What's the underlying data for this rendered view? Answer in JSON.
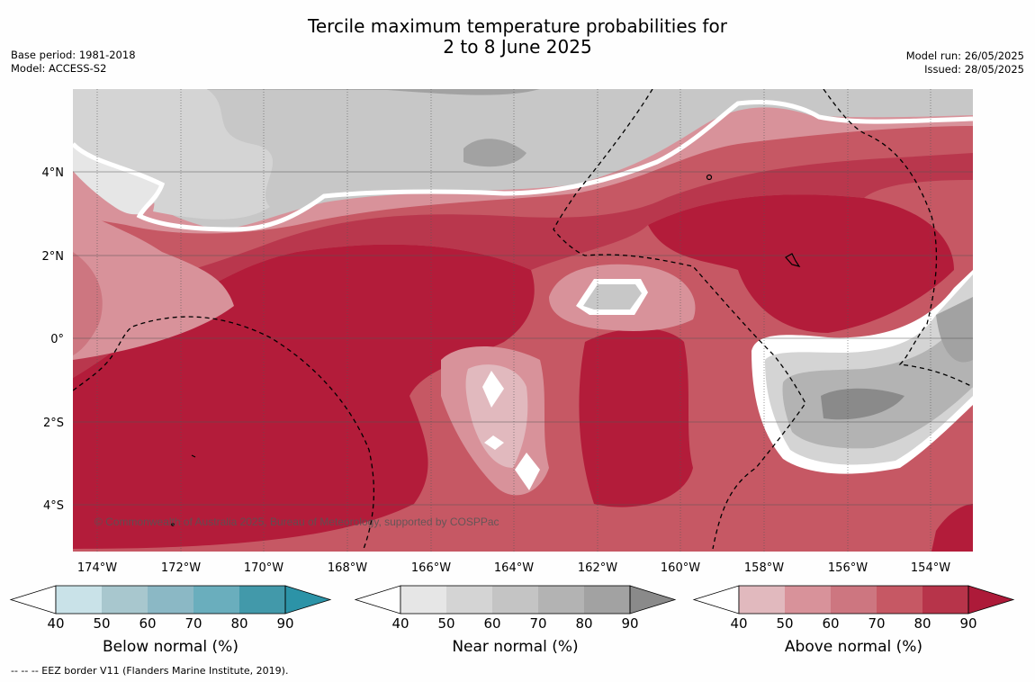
{
  "header": {
    "title_line1": "Tercile maximum temperature probabilities for",
    "title_line2": "2 to 8 June 2025",
    "base_period": "Base period: 1981-2018",
    "model": "Model: ACCESS-S2",
    "model_run": "Model run: 26/05/2025",
    "issued": "Issued: 28/05/2025"
  },
  "map": {
    "region": "Central equatorial Pacific",
    "lon_labels": [
      "174°W",
      "172°W",
      "170°W",
      "168°W",
      "166°W",
      "164°W",
      "162°W",
      "160°W",
      "158°W",
      "156°W",
      "154°W"
    ],
    "lat_labels": [
      "4°N",
      "2°N",
      "0°",
      "2°S",
      "4°S"
    ],
    "copyright": "© Commonwealth of Australia 2025, Bureau of Meteorology, supported by COSPPac",
    "colors": {
      "ocean_above": "#b31c3a",
      "near_normal": "#c7c7c7"
    }
  },
  "colorbars": [
    {
      "name": "below",
      "title": "Below normal (%)",
      "ticks": [
        "40",
        "50",
        "60",
        "70",
        "80",
        "90"
      ],
      "colors": [
        "#ffffff",
        "#c9e2e8",
        "#a8c7ce",
        "#8bb8c5",
        "#6aaebd",
        "#4299aa",
        "#2c93a7"
      ]
    },
    {
      "name": "near",
      "title": "Near normal (%)",
      "ticks": [
        "40",
        "50",
        "60",
        "70",
        "80",
        "90"
      ],
      "colors": [
        "#ffffff",
        "#e6e6e6",
        "#d4d4d4",
        "#c4c4c4",
        "#b3b3b3",
        "#a2a2a2",
        "#8a8a8a"
      ]
    },
    {
      "name": "above",
      "title": "Above normal (%)",
      "ticks": [
        "40",
        "50",
        "60",
        "70",
        "80",
        "90"
      ],
      "colors": [
        "#ffffff",
        "#e1b9be",
        "#d8929a",
        "#cd7680",
        "#c65864",
        "#b7344a",
        "#ad1a39"
      ]
    }
  ],
  "footer": {
    "eez_note": "--  --  -- EEZ border V11 (Flanders Marine Institute, 2019)."
  }
}
